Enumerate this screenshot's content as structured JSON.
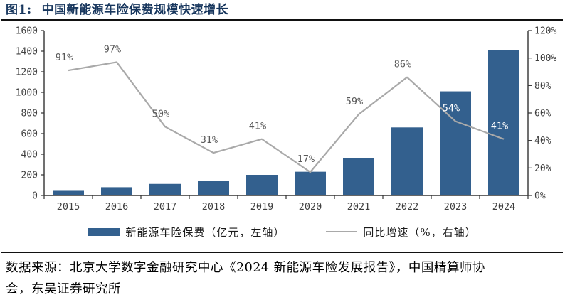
{
  "title": {
    "prefix": "图1:",
    "text": "中国新能源车险保费规模快速增长"
  },
  "legend": [
    {
      "label": "新能源车险保费（亿元，左轴）",
      "swatch": "bar-swatch-icon",
      "color": "#33608E"
    },
    {
      "label": "同比增速（%，右轴）",
      "swatch": "line-swatch-icon",
      "color": "#A9A9A9"
    }
  ],
  "source": {
    "lines": [
      "数据来源：北京大学数字金融研究中心《2024 新能源车险发展报告》，中国精算师协",
      "会，东吴证券研究所"
    ]
  },
  "colors": {
    "title_navy": "#17365D",
    "bar_blue": "#33608E",
    "line_gray": "#A9A9A9",
    "axis_dark": "#333333",
    "tick_label": "#404040",
    "data_label": "#595959",
    "data_label_on_bar": "#FFFFFF",
    "rule_black": "#111111"
  },
  "chart_data": {
    "type": "bar",
    "subtype": "bar-line-combo",
    "title": "中国新能源车险保费规模快速增长",
    "categories": [
      "2015",
      "2016",
      "2017",
      "2018",
      "2019",
      "2020",
      "2021",
      "2022",
      "2023",
      "2024"
    ],
    "series": [
      {
        "name": "新能源车险保费（亿元，左轴）",
        "type": "bar",
        "axis": "left",
        "color": "#33608E",
        "values": [
          45,
          80,
          112,
          140,
          200,
          230,
          360,
          660,
          1010,
          1410
        ]
      },
      {
        "name": "同比增速（%，右轴）",
        "type": "line",
        "axis": "right",
        "color": "#A9A9A9",
        "values": [
          91,
          97,
          50,
          31,
          41,
          17,
          59,
          86,
          54,
          41
        ],
        "data_labels": [
          "91%",
          "97%",
          "50%",
          "31%",
          "41%",
          "17%",
          "59%",
          "86%",
          "54%",
          "41%"
        ],
        "labels_on_bar_indices": [
          8,
          9
        ]
      }
    ],
    "left_axis": {
      "min": 0,
      "max": 1600,
      "step": 200,
      "ticks": [
        "0",
        "200",
        "400",
        "600",
        "800",
        "1000",
        "1200",
        "1400",
        "1600"
      ]
    },
    "right_axis": {
      "min": 0,
      "max": 120,
      "step": 20,
      "ticks": [
        "0%",
        "20%",
        "40%",
        "60%",
        "80%",
        "100%",
        "120%"
      ]
    },
    "grid": false,
    "legend_position": "bottom"
  }
}
